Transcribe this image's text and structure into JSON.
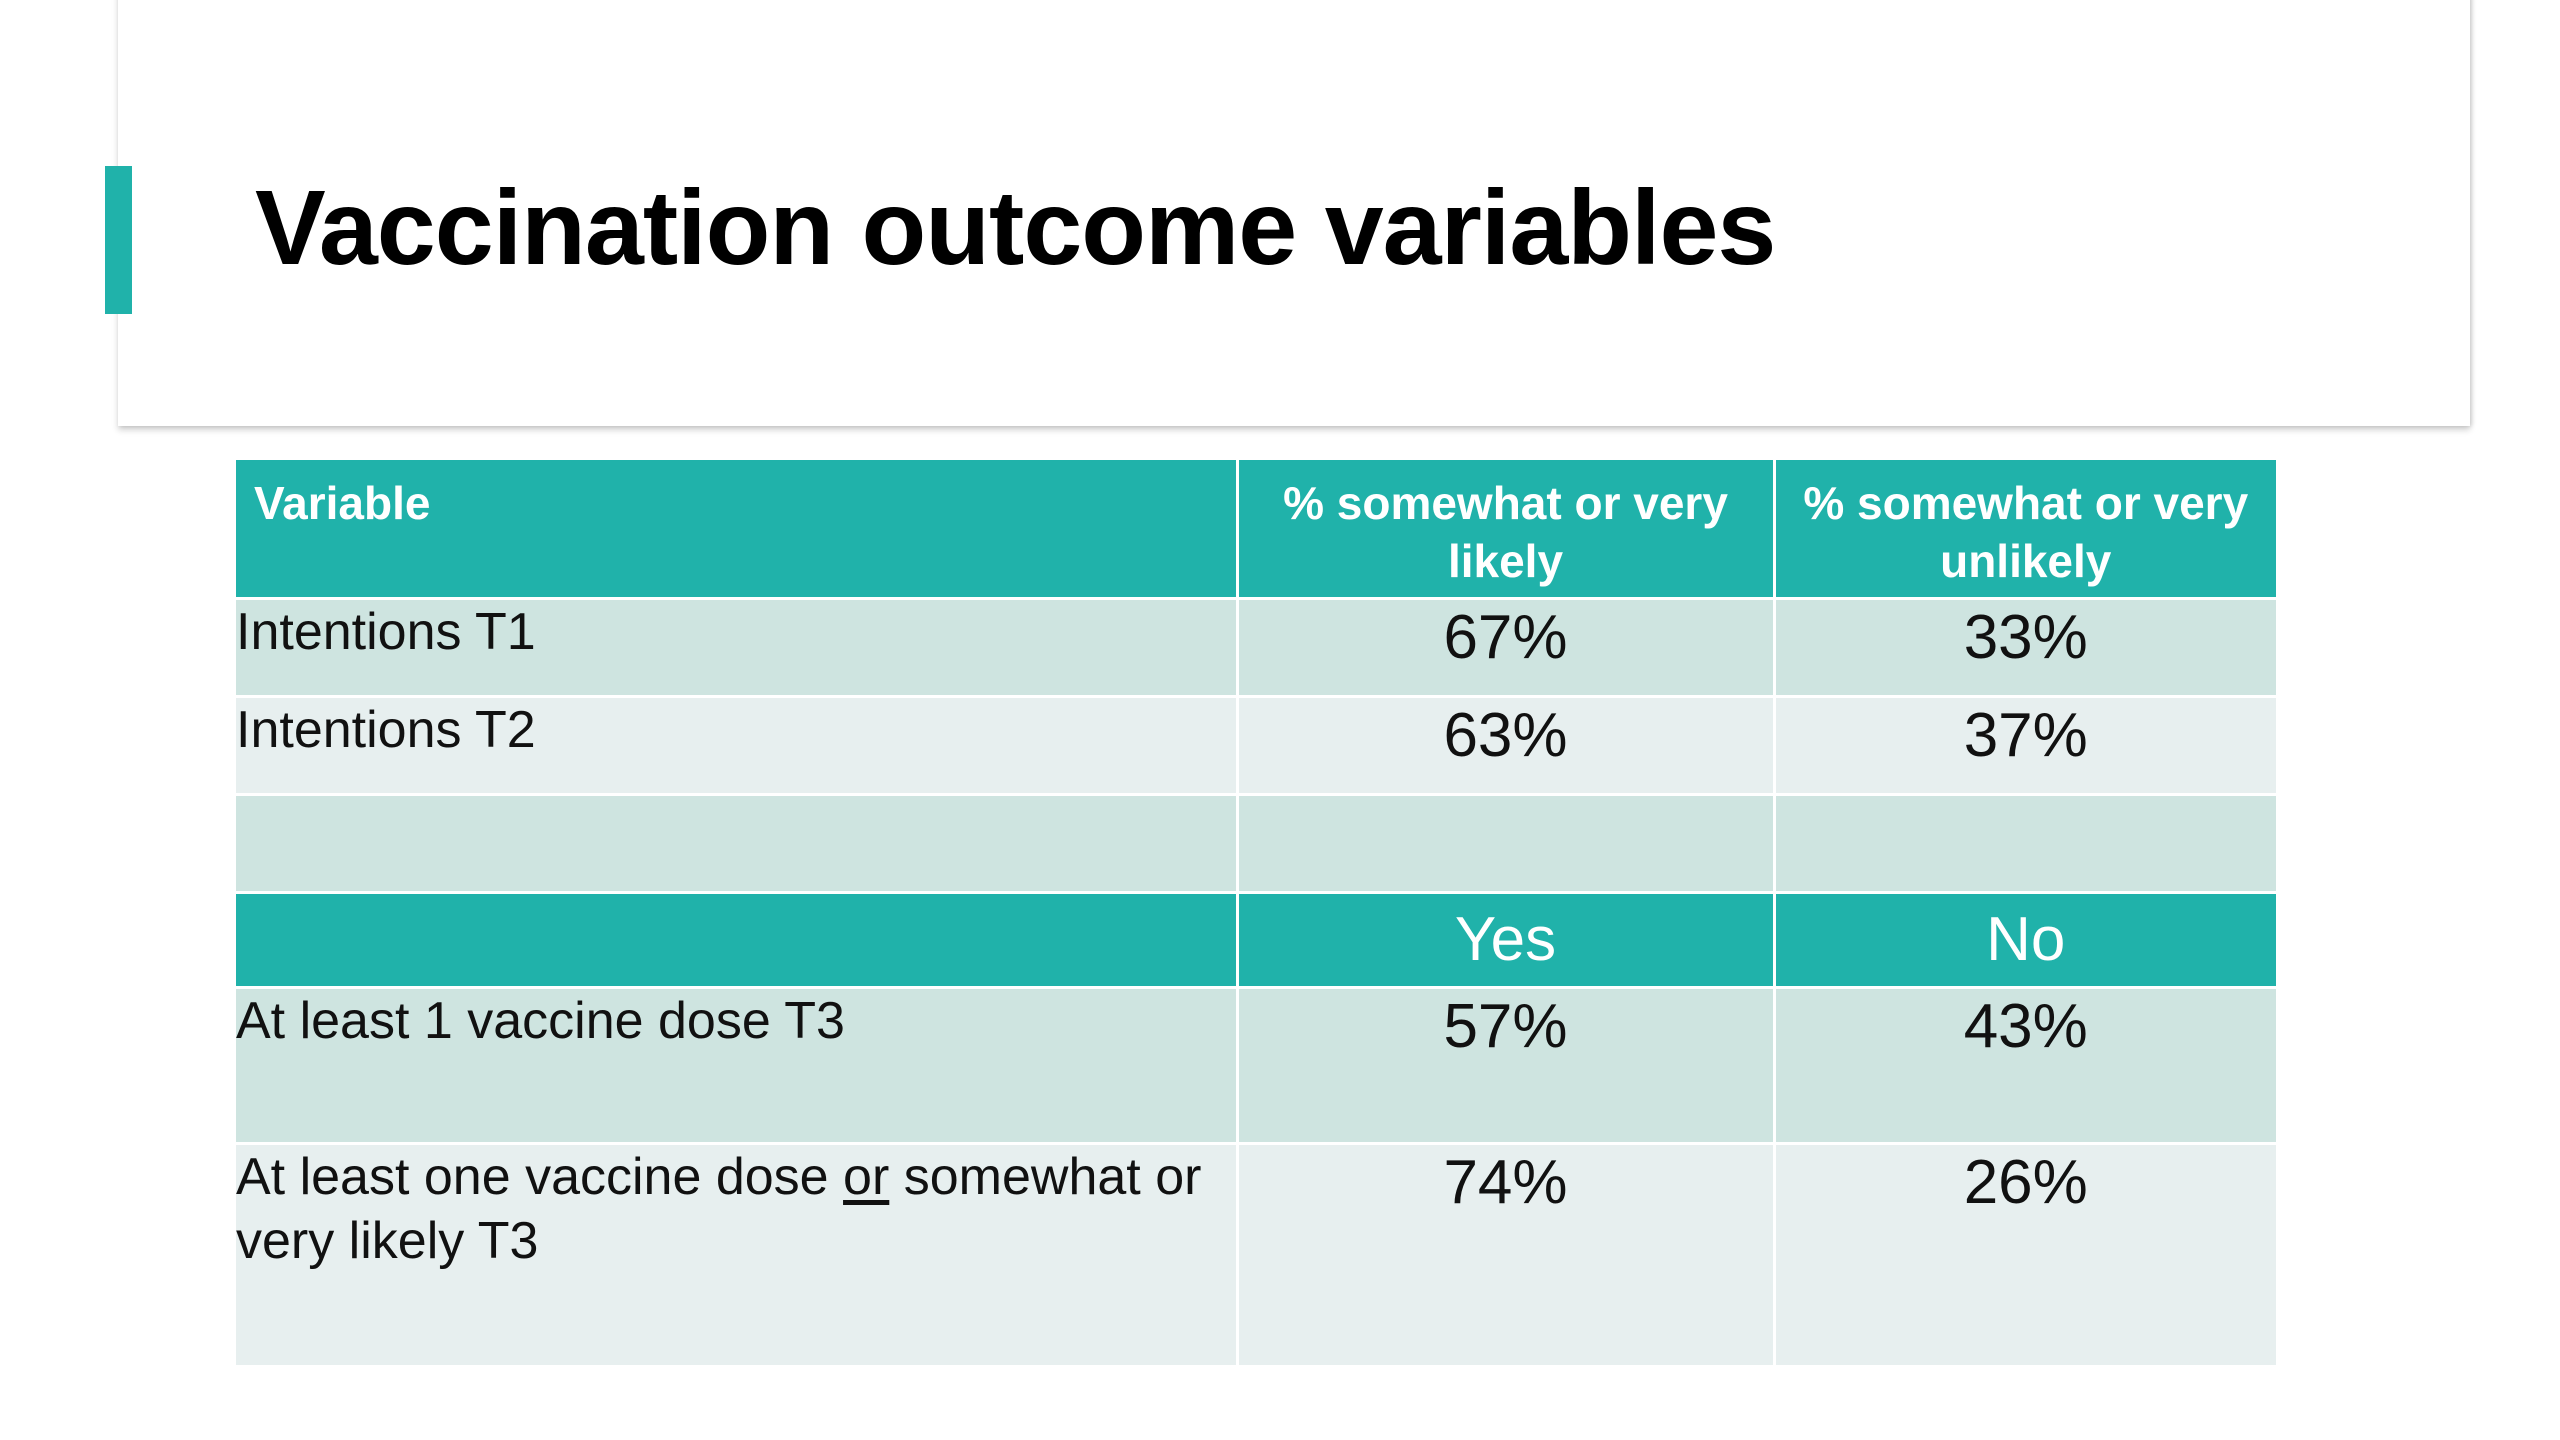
{
  "slide": {
    "title": "Vaccination outcome variables",
    "accent_color": "#20b2aa"
  },
  "table": {
    "headers": {
      "variable": "Variable",
      "likely": "% somewhat or very likely",
      "unlikely": "% somewhat or very unlikely"
    },
    "rows": [
      {
        "label": "Intentions T1",
        "a": "67%",
        "b": "33%"
      },
      {
        "label": "Intentions T2",
        "a": "63%",
        "b": "37%"
      }
    ],
    "subheader": {
      "yes": "Yes",
      "no": "No"
    },
    "rows2": [
      {
        "label": "At least 1 vaccine dose T3",
        "a": "57%",
        "b": "43%"
      },
      {
        "label_part1": "At least one vaccine dose ",
        "label_or": "or",
        "label_part2": " somewhat or very likely T3",
        "a": "74%",
        "b": "26%"
      }
    ],
    "colors": {
      "header_bg": "#20b2aa",
      "row_dark": "#cee4e0",
      "row_light": "#e7efef"
    }
  }
}
